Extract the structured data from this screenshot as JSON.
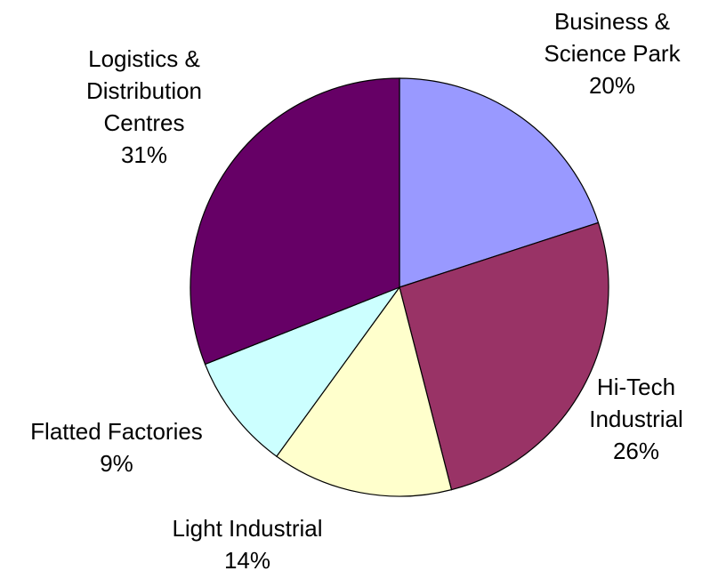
{
  "chart_data": {
    "type": "pie",
    "categories": [
      "Business & Science Park",
      "Hi-Tech Industrial",
      "Light Industrial",
      "Flatted Factories",
      "Logistics & Distribution Centres"
    ],
    "values": [
      20,
      26,
      14,
      9,
      31
    ],
    "value_labels": [
      "20%",
      "26%",
      "14%",
      "9%",
      "31%"
    ],
    "colors": [
      "#9999ff",
      "#993366",
      "#ffffcc",
      "#ccffff",
      "#660066"
    ]
  }
}
